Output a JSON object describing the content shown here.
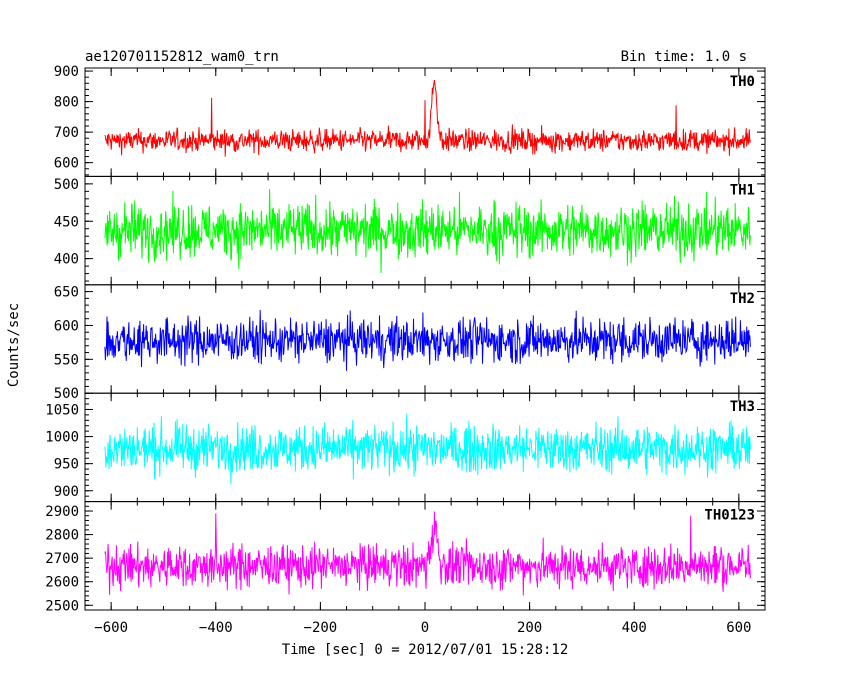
{
  "header": {
    "left": "ae120701152812_wam0_trn",
    "right": "Bin time: 1.0 s"
  },
  "chart_data": {
    "type": "line",
    "xlabel": "Time [sec] 0 = 2012/07/01 15:28:12",
    "ylabel": "Counts/sec",
    "xlim": [
      -650,
      650
    ],
    "xticks": [
      -600,
      -400,
      -200,
      0,
      200,
      400,
      600
    ],
    "xticklabels": [
      "−600",
      "−400",
      "−200",
      "0",
      "200",
      "400",
      "600"
    ],
    "x_range_data": [
      -612,
      622
    ],
    "bin_time_s": 1.0,
    "panels": [
      {
        "name": "TH0",
        "color": "#ff0000",
        "ylim": [
          555,
          910
        ],
        "yticks": [
          600,
          700,
          800,
          900
        ],
        "baseline": 672,
        "noise_amp": 30,
        "peak": {
          "x": 18,
          "height": 235,
          "width": 5
        },
        "spikes": [
          {
            "x": -408,
            "value": 812
          },
          {
            "x": 0,
            "value": 805
          },
          {
            "x": 480,
            "value": 788
          }
        ]
      },
      {
        "name": "TH1",
        "color": "#00ff00",
        "ylim": [
          365,
          510
        ],
        "yticks": [
          400,
          450,
          500
        ],
        "baseline": 438,
        "noise_amp": 30,
        "peak": null,
        "spikes": []
      },
      {
        "name": "TH2",
        "color": "#0000ff",
        "ylim": [
          500,
          660
        ],
        "yticks": [
          500,
          550,
          600,
          650
        ],
        "baseline": 578,
        "noise_amp": 27,
        "peak": null,
        "spikes": []
      },
      {
        "name": "TH3",
        "color": "#00ffff",
        "ylim": [
          880,
          1080
        ],
        "yticks": [
          900,
          950,
          1000,
          1050
        ],
        "baseline": 978,
        "noise_amp": 36,
        "peak": null,
        "spikes": []
      },
      {
        "name": "TH0123",
        "color": "#ff00ff",
        "ylim": [
          2480,
          2940
        ],
        "yticks": [
          2500,
          2600,
          2700,
          2800,
          2900
        ],
        "baseline": 2665,
        "noise_amp": 75,
        "peak": {
          "x": 18,
          "height": 200,
          "width": 6
        },
        "spikes": [
          {
            "x": -400,
            "value": 2890
          },
          {
            "x": 508,
            "value": 2880
          }
        ]
      }
    ]
  }
}
